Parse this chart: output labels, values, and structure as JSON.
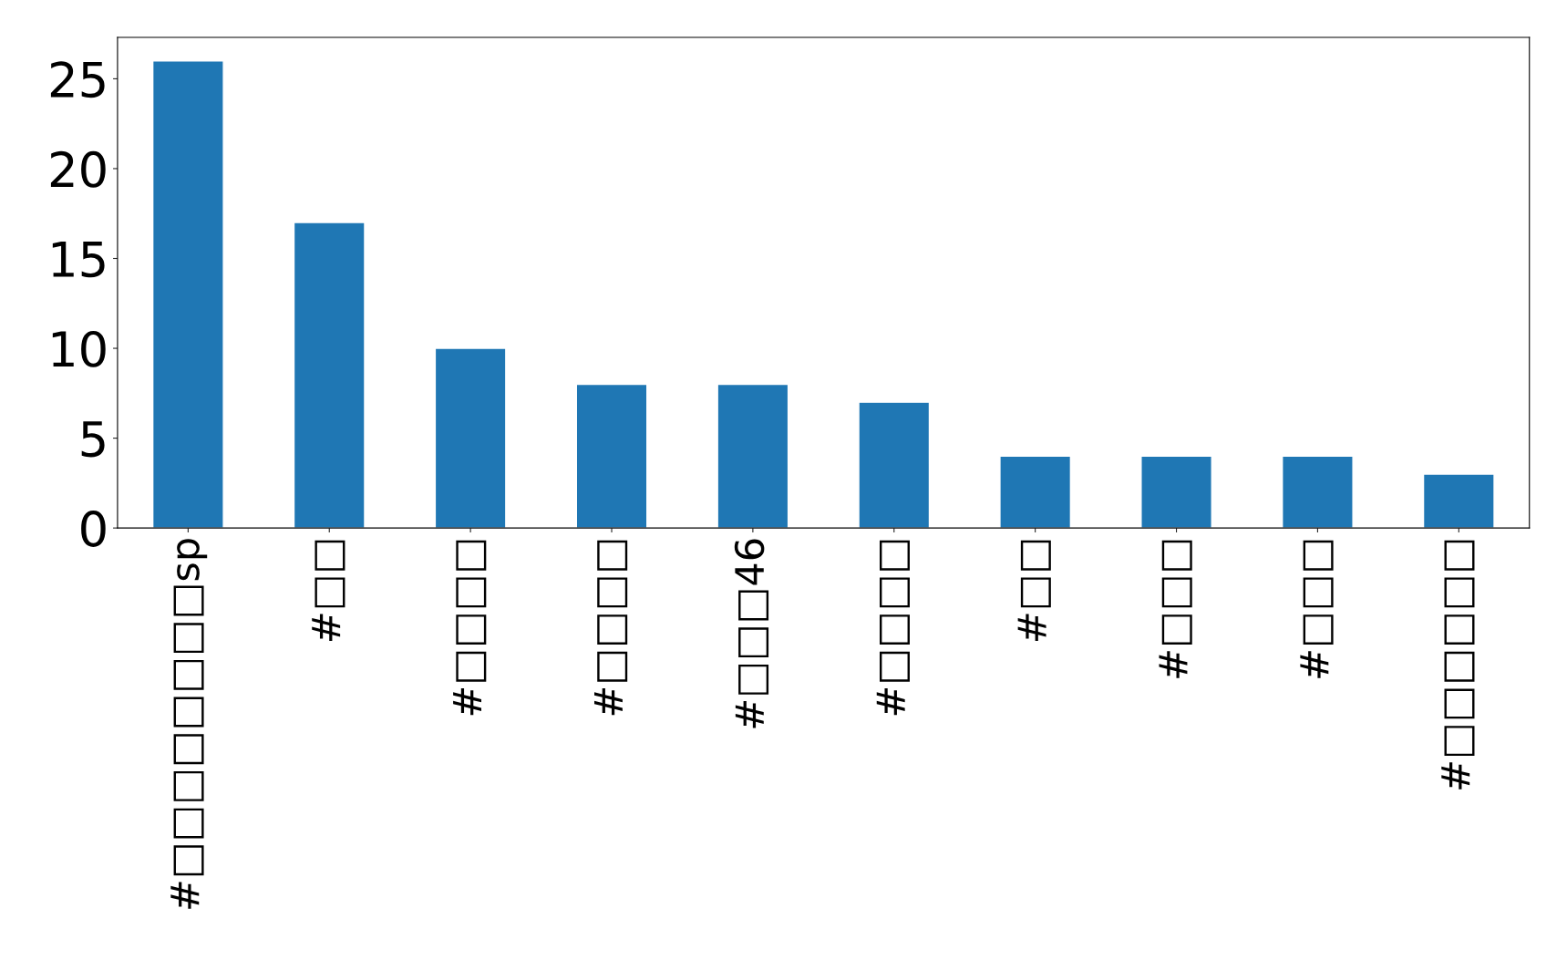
{
  "chart_data": {
    "type": "bar",
    "categories": [
      "#□□□□□□□□sp",
      "#□□",
      "#□□□□",
      "#□□□□",
      "#□□□46",
      "#□□□□",
      "#□□",
      "#□□□",
      "#□□□",
      "#□□□□□□"
    ],
    "values": [
      26,
      17,
      10,
      8,
      8,
      7,
      4,
      4,
      4,
      3
    ],
    "color": "#1f77b4",
    "ylim": [
      0,
      27.3
    ],
    "yticks": [
      0,
      5,
      10,
      15,
      20,
      25
    ],
    "grid": false,
    "legend": false
  }
}
